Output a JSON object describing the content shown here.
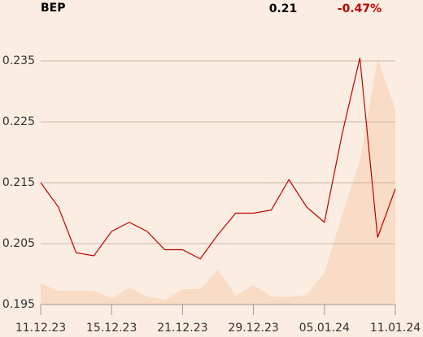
{
  "chart_data": {
    "type": "line",
    "symbol": "BEP",
    "price": "0.21",
    "change": "-0.47%",
    "categories": [
      "11.12.23",
      null,
      null,
      null,
      "15.12.23",
      null,
      null,
      null,
      "21.12.23",
      null,
      null,
      null,
      "29.12.23",
      null,
      null,
      null,
      "05.01.24",
      null,
      null,
      null,
      "11.01.24"
    ],
    "series": [
      {
        "color": "#c00000",
        "values": [
          0.215,
          0.211,
          0.2035,
          0.203,
          0.207,
          0.2085,
          0.207,
          0.204,
          0.204,
          0.2025,
          0.2065,
          0.21,
          0.21,
          0.2105,
          0.2155,
          0.211,
          0.2085,
          0.223,
          0.2355,
          0.206,
          0.214
        ]
      },
      {
        "color": "#f9dcc6",
        "axis": "y2",
        "values": [
          26,
          17,
          17,
          17,
          8,
          21,
          10,
          6,
          19,
          19,
          43,
          11,
          24,
          10,
          9,
          12,
          39,
          110,
          177,
          303,
          240
        ]
      }
    ],
    "ylim": [
      0.195,
      0.235
    ],
    "yticks": [
      0.195,
      0.205,
      0.215,
      0.225,
      0.235
    ],
    "y2lim": [
      0,
      300
    ],
    "grid": true
  }
}
